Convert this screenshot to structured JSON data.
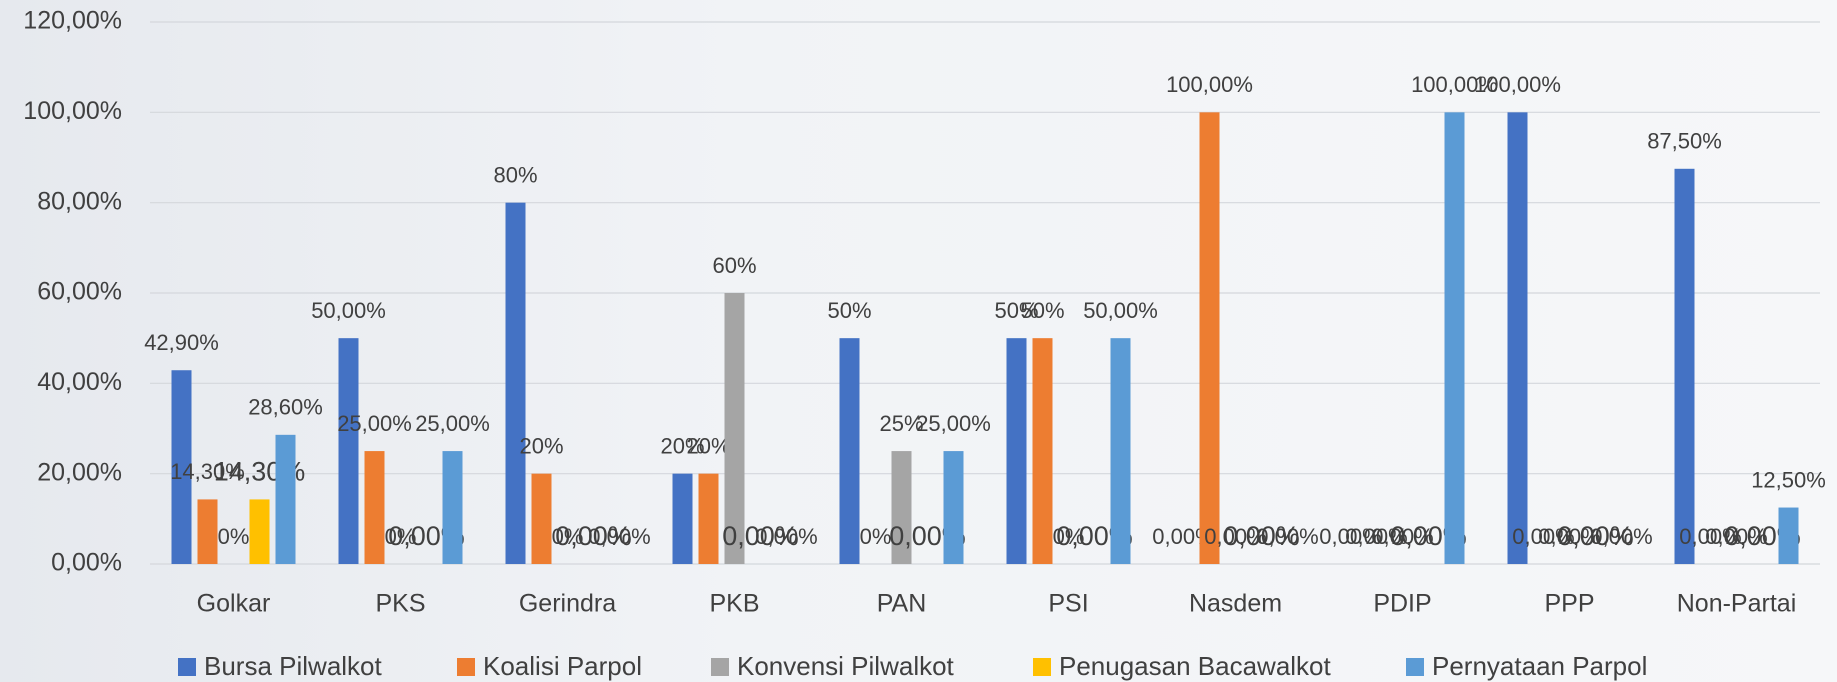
{
  "chart_data": {
    "type": "bar",
    "categories": [
      "Golkar",
      "PKS",
      "Gerindra",
      "PKB",
      "PAN",
      "PSI",
      "Nasdem",
      "PDIP",
      "PPP",
      "Non-Partai"
    ],
    "series": [
      {
        "name": "Bursa Pilwalkot",
        "color": "#4472c4",
        "values": [
          42.9,
          50,
          80,
          20,
          50,
          50,
          0,
          0,
          100,
          87.5
        ],
        "value_labels": [
          "42,90%",
          "50,00%",
          "80%",
          "20%",
          "50%",
          "50%",
          "0,00%",
          "0,00%",
          "100,00%",
          "87,50%"
        ]
      },
      {
        "name": "Koalisi Parpol",
        "color": "#ed7d31",
        "values": [
          14.3,
          25,
          20,
          20,
          0,
          50,
          100,
          0,
          0,
          0
        ],
        "value_labels": [
          "14,30%",
          "25,00%",
          "20%",
          "20%",
          "0%",
          "50%",
          "100,00%",
          "0,00%",
          "0,00%",
          "0,00%"
        ]
      },
      {
        "name": "Konvensi Pilwalkot",
        "color": "#a5a5a5",
        "values": [
          0,
          0,
          0,
          60,
          25,
          0,
          0,
          0,
          0,
          0
        ],
        "value_labels": [
          "0%",
          "0%",
          "0%",
          "60%",
          "25%",
          "0%",
          "0,00%",
          "0,00%",
          "0,00%",
          "0,00%"
        ]
      },
      {
        "name": "Penugasan Bacawalkot",
        "color": "#ffc000",
        "values": [
          14.3,
          0,
          0,
          0,
          0,
          0,
          0,
          0,
          0,
          0
        ],
        "value_labels": [
          "14,30%",
          "0,00%",
          "0,00%",
          "0,00%",
          "0,00%",
          "0,00%",
          "0,00%",
          "0,00%",
          "0,00%",
          "0,00%"
        ]
      },
      {
        "name": "Pernyataan Parpol",
        "color": "#5b9bd5",
        "values": [
          28.6,
          25,
          0,
          0,
          25,
          50,
          0,
          100,
          0,
          12.5
        ],
        "value_labels": [
          "28,60%",
          "25,00%",
          "0,00%",
          "0,00%",
          "25,00%",
          "50,00%",
          "0,00%",
          "100,00%",
          "0,00%",
          "12,50%"
        ]
      }
    ],
    "ylim": [
      0,
      120
    ],
    "yticks": [
      {
        "value": 0,
        "label": "0,00%"
      },
      {
        "value": 20,
        "label": "20,00%"
      },
      {
        "value": 40,
        "label": "40,00%"
      },
      {
        "value": 60,
        "label": "60,00%"
      },
      {
        "value": 80,
        "label": "80,00%"
      },
      {
        "value": 100,
        "label": "100,00%"
      },
      {
        "value": 120,
        "label": "120,00%"
      }
    ],
    "grid": true,
    "legend": "bottom"
  }
}
